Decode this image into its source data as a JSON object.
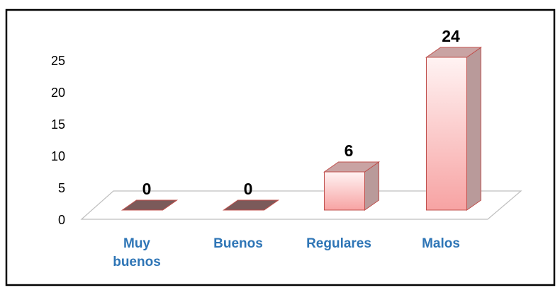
{
  "chart_data": {
    "type": "bar3d",
    "categories": [
      "Muy buenos",
      "Buenos",
      "Regulares",
      "Malos"
    ],
    "values": [
      0,
      0,
      6,
      24
    ],
    "color": "#f4a0a0",
    "ylim": [
      0,
      25
    ],
    "yticks": [
      0,
      5,
      10,
      15,
      20,
      25
    ],
    "grid": false
  }
}
